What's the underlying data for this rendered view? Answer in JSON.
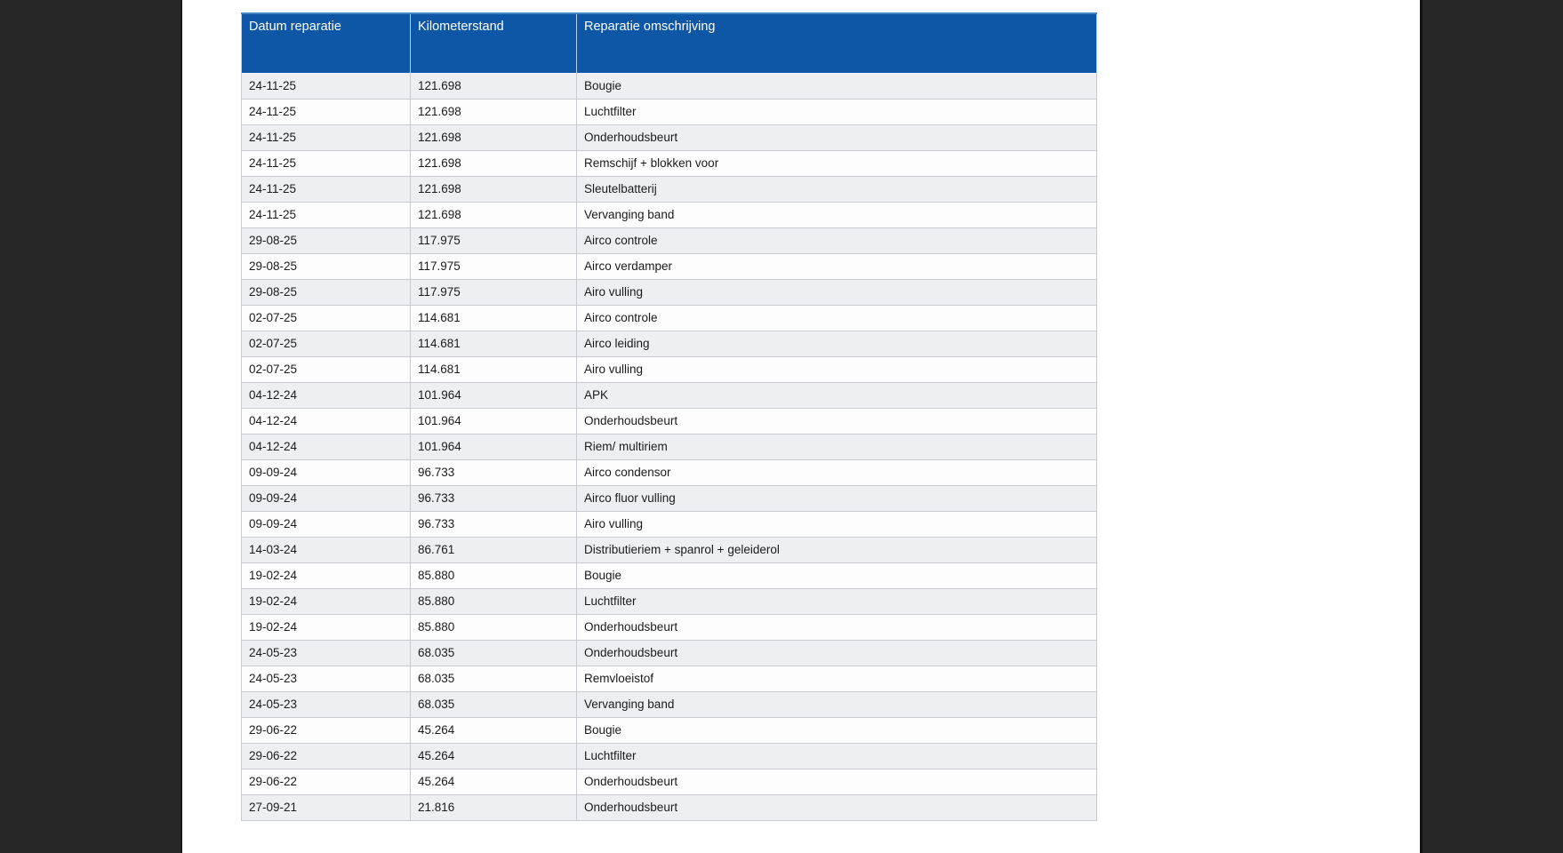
{
  "window": {
    "side_panel_color": "#272727",
    "page_color": "#ffffff"
  },
  "table": {
    "header_bg": "#0d57a6",
    "header_text_color": "#ffffff",
    "row_alt_bg": "#eeeff3",
    "row_bg": "#fdfdfe",
    "border_color": "#c9c9d2",
    "columns": [
      {
        "key": "datum",
        "label": "Datum reparatie"
      },
      {
        "key": "kilometerstand",
        "label": "Kilometerstand"
      },
      {
        "key": "omschrijving",
        "label": "Reparatie omschrijving"
      }
    ],
    "rows": [
      {
        "datum": "24-11-25",
        "kilometerstand": "121.698",
        "omschrijving": "Bougie"
      },
      {
        "datum": "24-11-25",
        "kilometerstand": "121.698",
        "omschrijving": "Luchtfilter"
      },
      {
        "datum": "24-11-25",
        "kilometerstand": "121.698",
        "omschrijving": "Onderhoudsbeurt"
      },
      {
        "datum": "24-11-25",
        "kilometerstand": "121.698",
        "omschrijving": "Remschijf + blokken voor"
      },
      {
        "datum": "24-11-25",
        "kilometerstand": "121.698",
        "omschrijving": "Sleutelbatterij"
      },
      {
        "datum": "24-11-25",
        "kilometerstand": "121.698",
        "omschrijving": "Vervanging band"
      },
      {
        "datum": "29-08-25",
        "kilometerstand": "117.975",
        "omschrijving": "Airco controle"
      },
      {
        "datum": "29-08-25",
        "kilometerstand": "117.975",
        "omschrijving": "Airco verdamper"
      },
      {
        "datum": "29-08-25",
        "kilometerstand": "117.975",
        "omschrijving": "Airo vulling"
      },
      {
        "datum": "02-07-25",
        "kilometerstand": "114.681",
        "omschrijving": "Airco controle"
      },
      {
        "datum": "02-07-25",
        "kilometerstand": "114.681",
        "omschrijving": "Airco leiding"
      },
      {
        "datum": "02-07-25",
        "kilometerstand": "114.681",
        "omschrijving": "Airo vulling"
      },
      {
        "datum": "04-12-24",
        "kilometerstand": "101.964",
        "omschrijving": "APK"
      },
      {
        "datum": "04-12-24",
        "kilometerstand": "101.964",
        "omschrijving": "Onderhoudsbeurt"
      },
      {
        "datum": "04-12-24",
        "kilometerstand": "101.964",
        "omschrijving": "Riem/ multiriem"
      },
      {
        "datum": "09-09-24",
        "kilometerstand": "96.733",
        "omschrijving": "Airco condensor"
      },
      {
        "datum": "09-09-24",
        "kilometerstand": "96.733",
        "omschrijving": "Airco fluor vulling"
      },
      {
        "datum": "09-09-24",
        "kilometerstand": "96.733",
        "omschrijving": "Airo vulling"
      },
      {
        "datum": "14-03-24",
        "kilometerstand": "86.761",
        "omschrijving": "Distributieriem + spanrol + geleiderol"
      },
      {
        "datum": "19-02-24",
        "kilometerstand": "85.880",
        "omschrijving": "Bougie"
      },
      {
        "datum": "19-02-24",
        "kilometerstand": "85.880",
        "omschrijving": "Luchtfilter"
      },
      {
        "datum": "19-02-24",
        "kilometerstand": "85.880",
        "omschrijving": "Onderhoudsbeurt"
      },
      {
        "datum": "24-05-23",
        "kilometerstand": "68.035",
        "omschrijving": "Onderhoudsbeurt"
      },
      {
        "datum": "24-05-23",
        "kilometerstand": "68.035",
        "omschrijving": "Remvloeistof"
      },
      {
        "datum": "24-05-23",
        "kilometerstand": "68.035",
        "omschrijving": "Vervanging band"
      },
      {
        "datum": "29-06-22",
        "kilometerstand": "45.264",
        "omschrijving": "Bougie"
      },
      {
        "datum": "29-06-22",
        "kilometerstand": "45.264",
        "omschrijving": "Luchtfilter"
      },
      {
        "datum": "29-06-22",
        "kilometerstand": "45.264",
        "omschrijving": "Onderhoudsbeurt"
      },
      {
        "datum": "27-09-21",
        "kilometerstand": "21.816",
        "omschrijving": "Onderhoudsbeurt"
      }
    ]
  }
}
